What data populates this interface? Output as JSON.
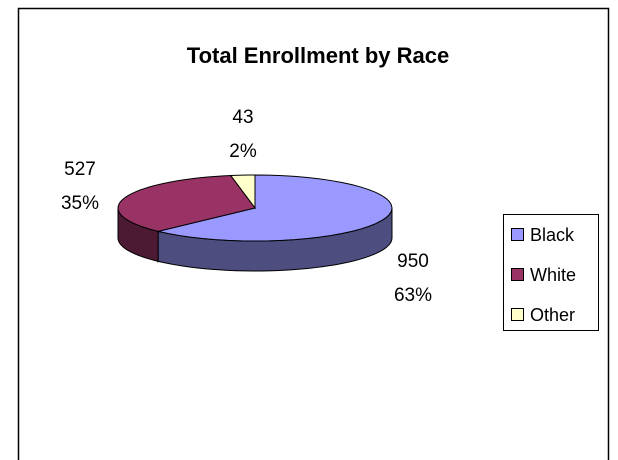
{
  "chart_data": {
    "type": "pie3d",
    "title": "Total Enrollment by Race",
    "categories": [
      "Black",
      "White",
      "Other"
    ],
    "values": [
      950,
      527,
      43
    ],
    "percent_labels": [
      "63%",
      "35%",
      "2%"
    ],
    "colors": [
      "#9999ff",
      "#993366",
      "#ffffcc"
    ],
    "legend": "right"
  }
}
